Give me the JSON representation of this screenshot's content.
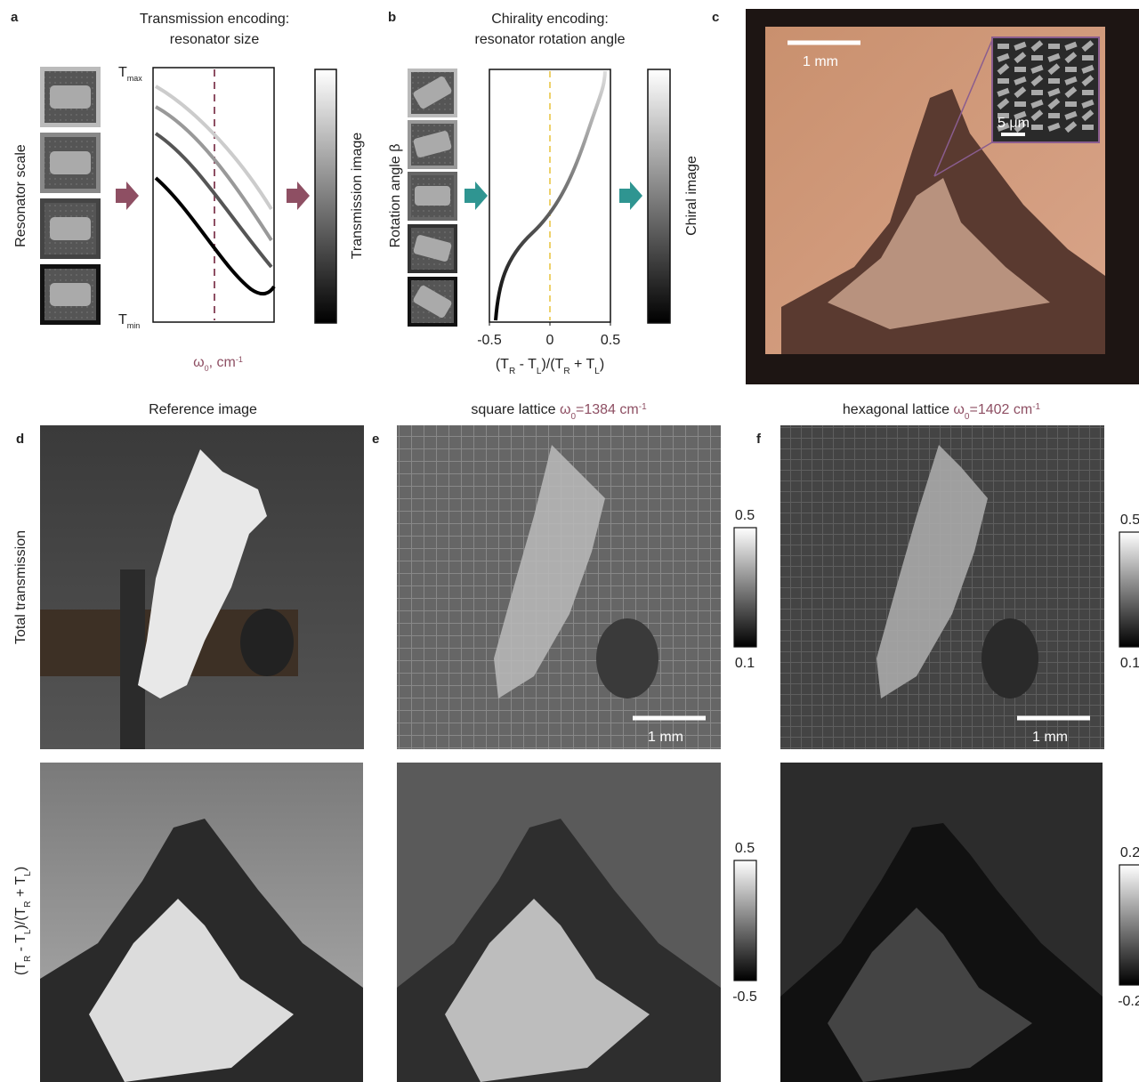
{
  "panel_a": {
    "label": "a",
    "title": [
      "Transmission encoding:",
      "resonator size"
    ],
    "y_label": "Resonator scale",
    "t_max": [
      "T",
      "max"
    ],
    "t_min": [
      "T",
      "min"
    ],
    "x_label": [
      "ω",
      "0",
      ", cm",
      "-1"
    ],
    "colorbar_label": "Transmission image"
  },
  "panel_b": {
    "label": "b",
    "title": [
      "Chirality encoding:",
      "resonator rotation angle"
    ],
    "y_label": "Rotation angle β",
    "x_ticks": [
      -0.5,
      0,
      0.5
    ],
    "x_label": [
      "(T",
      "R",
      " - T",
      "L",
      ")/(T",
      "R",
      " + T",
      "L",
      ")"
    ],
    "colorbar_label": "Chiral image"
  },
  "panel_c": {
    "label": "c",
    "scale_bar": "1 mm",
    "inset_scale_bar": "5 μm"
  },
  "column_titles": [
    [
      "Reference image"
    ],
    [
      "square lattice ",
      "ω",
      "0",
      "=1384 cm",
      "-1"
    ],
    [
      "hexagonal lattice ",
      "ω",
      "0",
      "=1402 cm",
      "-1"
    ]
  ],
  "panel_labels": [
    "d",
    "e",
    "f"
  ],
  "row_labels": {
    "transmission": "Total transmission",
    "chirality": [
      "(T",
      "R",
      " - T",
      "L",
      ")/(T",
      "R",
      " + T",
      "L",
      ")"
    ]
  },
  "colorbars": {
    "e_transmission": [
      0.5,
      0.1
    ],
    "f_transmission": [
      0.5,
      0.1
    ],
    "e_chirality": [
      0.5,
      -0.5
    ],
    "f_chirality": [
      0.2,
      -0.2
    ]
  },
  "scale_bars": [
    "1 mm",
    "1 mm"
  ]
}
